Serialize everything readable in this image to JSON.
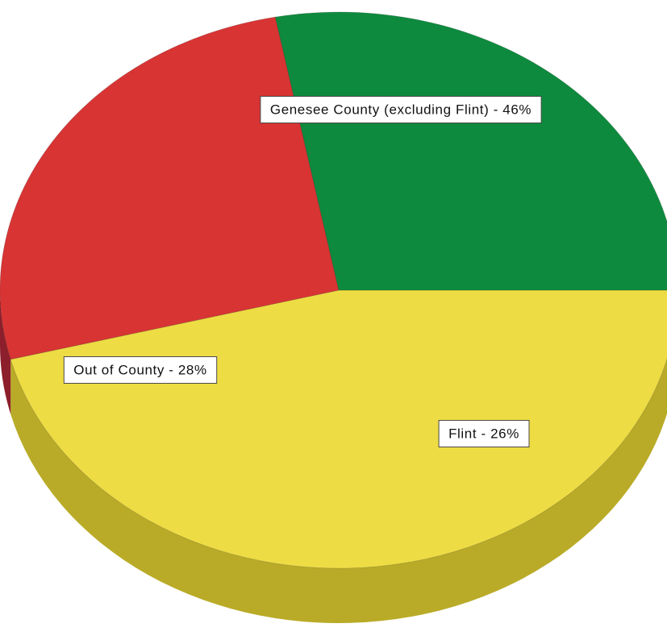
{
  "chart_data": {
    "type": "pie",
    "title": "",
    "three_d": true,
    "legend": "none",
    "slices": [
      {
        "label": "Genesee County (excluding Flint) - 46%",
        "category": "Genesee County (excluding Flint)",
        "value": 46,
        "color": "#eedc44",
        "side_color": "#b9ab27"
      },
      {
        "label": "Flint - 26%",
        "category": "Flint",
        "value": 26,
        "color": "#d83434",
        "side_color": "#8c1f2b"
      },
      {
        "label": "Out of County - 28%",
        "category": "Out of County",
        "value": 28,
        "color": "#0e8a3e",
        "side_color": "#0c6b31"
      }
    ]
  }
}
